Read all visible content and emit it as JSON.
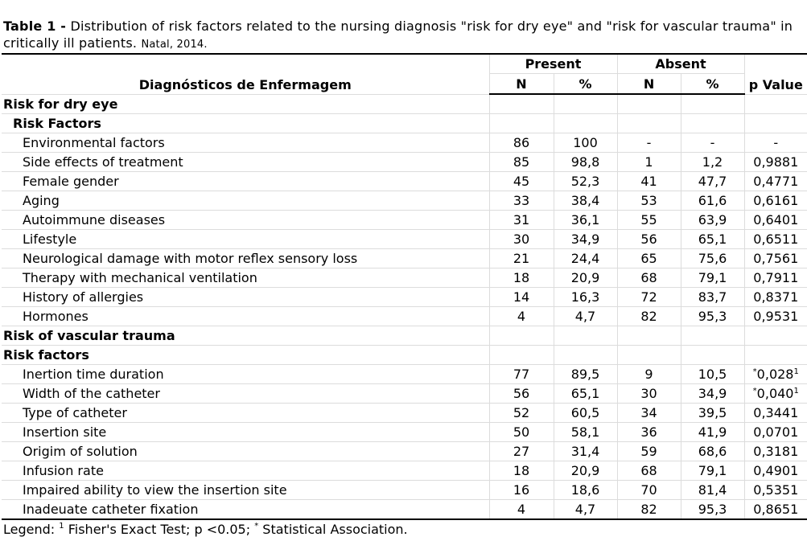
{
  "caption": {
    "label": "Table 1 -",
    "text": " Distribution of risk factors related to the nursing diagnosis \"risk for dry eye\" and \"risk for vascular trauma\" in critically ill patients.",
    "place_date": "Natal, 2014."
  },
  "header": {
    "col1": "Diagnósticos de Enfermagem",
    "present": "Present",
    "absent": "Absent",
    "n": "N",
    "pct": "%",
    "pvalue": "p Value"
  },
  "sections": [
    {
      "title": "Risk for dry eye",
      "subtitle": "Risk Factors",
      "rows": [
        {
          "label": "Environmental factors",
          "pn": "86",
          "pp": "100",
          "an": "-",
          "ap": "-",
          "pv": "-",
          "pv_pre": "",
          "pv_sup": ""
        },
        {
          "label": "Side effects of treatment",
          "pn": "85",
          "pp": "98,8",
          "an": "1",
          "ap": "1,2",
          "pv": "0,9881",
          "pv_pre": "",
          "pv_sup": ""
        },
        {
          "label": "Female gender",
          "pn": "45",
          "pp": "52,3",
          "an": "41",
          "ap": "47,7",
          "pv": "0,4771",
          "pv_pre": "",
          "pv_sup": ""
        },
        {
          "label": "Aging",
          "pn": "33",
          "pp": "38,4",
          "an": "53",
          "ap": "61,6",
          "pv": "0,6161",
          "pv_pre": "",
          "pv_sup": ""
        },
        {
          "label": "Autoimmune diseases",
          "pn": "31",
          "pp": "36,1",
          "an": "55",
          "ap": "63,9",
          "pv": "0,6401",
          "pv_pre": "",
          "pv_sup": ""
        },
        {
          "label": "Lifestyle",
          "pn": "30",
          "pp": "34,9",
          "an": "56",
          "ap": "65,1",
          "pv": "0,6511",
          "pv_pre": "",
          "pv_sup": ""
        },
        {
          "label": "Neurological damage with motor reflex sensory loss",
          "pn": "21",
          "pp": "24,4",
          "an": "65",
          "ap": "75,6",
          "pv": "0,7561",
          "pv_pre": "",
          "pv_sup": ""
        },
        {
          "label": "Therapy with mechanical ventilation",
          "pn": "18",
          "pp": "20,9",
          "an": "68",
          "ap": "79,1",
          "pv": "0,7911",
          "pv_pre": "",
          "pv_sup": ""
        },
        {
          "label": "History of allergies",
          "pn": "14",
          "pp": "16,3",
          "an": "72",
          "ap": "83,7",
          "pv": "0,8371",
          "pv_pre": "",
          "pv_sup": ""
        },
        {
          "label": "Hormones",
          "pn": "4",
          "pp": "4,7",
          "an": "82",
          "ap": "95,3",
          "pv": "0,9531",
          "pv_pre": "",
          "pv_sup": ""
        }
      ]
    },
    {
      "title": "Risk of vascular trauma",
      "subtitle": "Risk factors",
      "rows": [
        {
          "label": "Inertion time duration",
          "pn": "77",
          "pp": "89,5",
          "an": "9",
          "ap": "10,5",
          "pv": "0,028",
          "pv_pre": "*",
          "pv_sup": "1"
        },
        {
          "label": "Width of the catheter",
          "pn": "56",
          "pp": "65,1",
          "an": "30",
          "ap": "34,9",
          "pv": "0,040",
          "pv_pre": "*",
          "pv_sup": "1"
        },
        {
          "label": "Type of catheter",
          "pn": "52",
          "pp": "60,5",
          "an": "34",
          "ap": "39,5",
          "pv": "0,3441",
          "pv_pre": "",
          "pv_sup": ""
        },
        {
          "label": "Insertion site",
          "pn": "50",
          "pp": "58,1",
          "an": "36",
          "ap": "41,9",
          "pv": "0,0701",
          "pv_pre": "",
          "pv_sup": ""
        },
        {
          "label": "Origim of solution",
          "pn": "27",
          "pp": "31,4",
          "an": "59",
          "ap": "68,6",
          "pv": "0,3181",
          "pv_pre": "",
          "pv_sup": ""
        },
        {
          "label": "Infusion rate",
          "pn": "18",
          "pp": "20,9",
          "an": "68",
          "ap": "79,1",
          "pv": "0,4901",
          "pv_pre": "",
          "pv_sup": ""
        },
        {
          "label": "Impaired ability to view the insertion site",
          "pn": "16",
          "pp": "18,6",
          "an": "70",
          "ap": "81,4",
          "pv": "0,5351",
          "pv_pre": "",
          "pv_sup": ""
        },
        {
          "label": "Inadeuate catheter fixation",
          "pn": "4",
          "pp": "4,7",
          "an": "82",
          "ap": "95,3",
          "pv": "0,8651",
          "pv_pre": "",
          "pv_sup": ""
        }
      ]
    }
  ],
  "legend": {
    "label": "Legend:",
    "sup1": "1",
    "text1": " Fisher's Exact Test; p <0.05;",
    "star": "*",
    "text2": " Statistical Association."
  }
}
